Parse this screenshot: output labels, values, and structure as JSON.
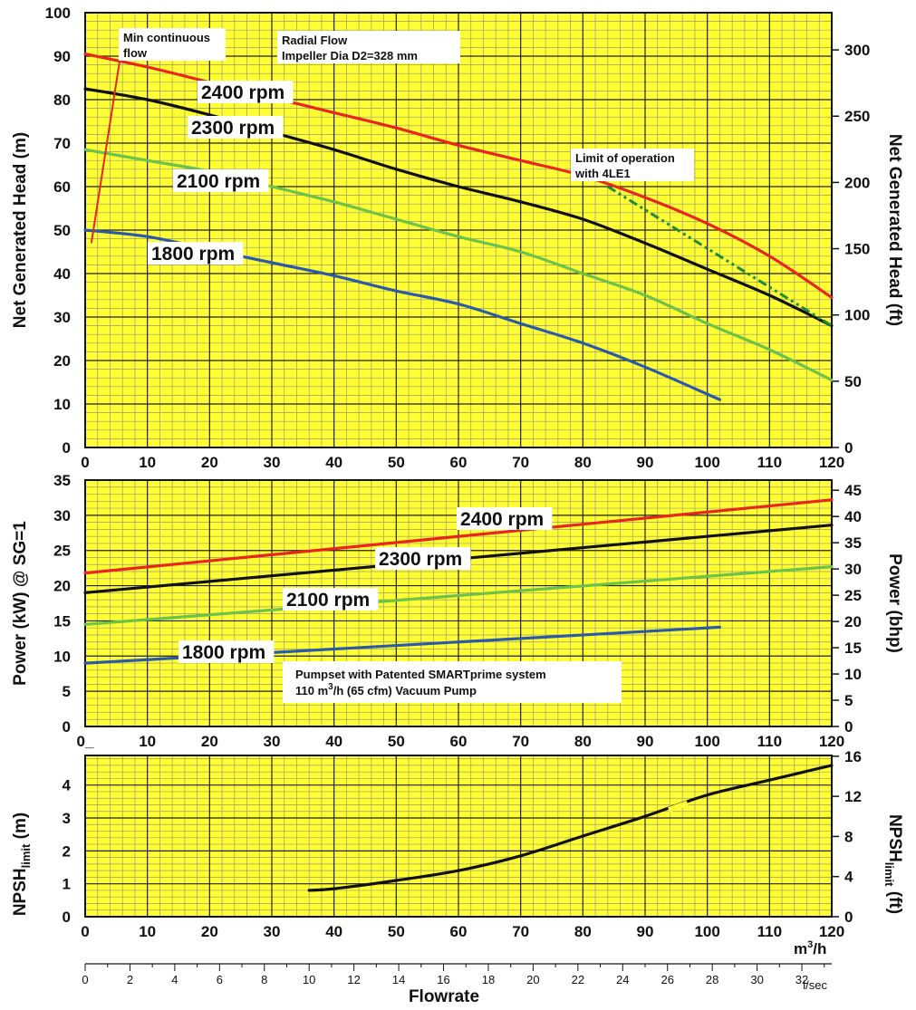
{
  "chart_data": [
    {
      "type": "line",
      "panel": "head",
      "ylabel_left": "Net Generated Head  (m)",
      "ylabel_right": "Net Generated Head  (ft)",
      "xlim": [
        0,
        120
      ],
      "ylim": [
        0,
        100
      ],
      "ylim_right_ft": [
        0,
        328
      ],
      "x_ticks": [
        "0",
        "10",
        "20",
        "30",
        "40",
        "50",
        "60",
        "70",
        "80",
        "90",
        "100",
        "110",
        "120"
      ],
      "y_ticks": [
        "0",
        "10",
        "20",
        "30",
        "40",
        "50",
        "60",
        "70",
        "80",
        "90",
        "100"
      ],
      "y_ticks_right": [
        "0",
        "50",
        "100",
        "150",
        "200",
        "250",
        "300"
      ],
      "grid": true,
      "series": [
        {
          "name": "2400 rpm",
          "color": "#e8261f",
          "x": [
            0,
            10,
            20,
            30,
            40,
            50,
            60,
            70,
            80,
            90,
            100,
            110,
            120
          ],
          "y": [
            90.5,
            87.5,
            84,
            80.5,
            77,
            73.5,
            69.5,
            66,
            62.5,
            57.5,
            51.5,
            44,
            34.5
          ]
        },
        {
          "name": "2300 rpm",
          "color": "#111111",
          "x": [
            0,
            10,
            20,
            30,
            40,
            50,
            60,
            70,
            80,
            90,
            100,
            110,
            120
          ],
          "y": [
            82.5,
            80,
            76.5,
            72.5,
            68.5,
            64,
            60,
            56.5,
            52.5,
            47,
            41,
            35,
            28
          ]
        },
        {
          "name": "2100 rpm",
          "color": "#6cc24a",
          "x": [
            0,
            10,
            20,
            30,
            40,
            50,
            60,
            70,
            80,
            90,
            100,
            110,
            120
          ],
          "y": [
            68.5,
            66,
            63.5,
            60,
            56.5,
            52.5,
            48.5,
            45,
            40,
            35,
            28.5,
            22.5,
            15.5
          ]
        },
        {
          "name": "1800 rpm",
          "color": "#2c5aa8",
          "x": [
            0,
            10,
            20,
            30,
            40,
            50,
            60,
            70,
            80,
            90,
            102
          ],
          "y": [
            50,
            48.5,
            45.5,
            42.5,
            39.5,
            36,
            33,
            28.5,
            24,
            18.5,
            11
          ]
        }
      ],
      "annotations": {
        "min_flow_line1": "Min continuous",
        "min_flow_line2": "flow",
        "impeller_line1": "Radial Flow",
        "impeller_line2": "Impeller Dia D2=328 mm",
        "limit_line1": "Limit of operation",
        "limit_line2": "with 4LE1"
      },
      "min_flow_line": {
        "x": [
          1,
          5.5
        ],
        "y": [
          47,
          88.5
        ],
        "color": "#e8261f"
      },
      "limit_line": {
        "x": [
          84,
          120
        ],
        "y": [
          60,
          28
        ],
        "color": "#1f8a3a"
      }
    },
    {
      "type": "line",
      "panel": "power",
      "ylabel_left": "Power (kW) @ SG=1",
      "ylabel_right": "Power (bhp)",
      "xlim": [
        0,
        120
      ],
      "ylim": [
        0,
        35
      ],
      "x_ticks": [
        "0_",
        "10",
        "20",
        "30",
        "40",
        "50",
        "60",
        "70",
        "80",
        "90",
        "100",
        "110",
        "120"
      ],
      "y_ticks": [
        "0",
        "5",
        "10",
        "15",
        "20",
        "25",
        "30",
        "35"
      ],
      "y_ticks_right": [
        "0",
        "5",
        "10",
        "15",
        "20",
        "25",
        "30",
        "35",
        "40",
        "45"
      ],
      "grid": true,
      "series": [
        {
          "name": "2400 rpm",
          "color": "#e8261f",
          "x": [
            0,
            120
          ],
          "y": [
            21.8,
            32.2
          ]
        },
        {
          "name": "2300 rpm",
          "color": "#111111",
          "x": [
            0,
            120
          ],
          "y": [
            19,
            28.6
          ]
        },
        {
          "name": "2100 rpm",
          "color": "#6cc24a",
          "x": [
            0,
            120
          ],
          "y": [
            14.5,
            22.7
          ]
        },
        {
          "name": "1800 rpm",
          "color": "#2c5aa8",
          "x": [
            0,
            102
          ],
          "y": [
            9,
            14.1
          ]
        }
      ],
      "annotations": {
        "pumpset_line1": "Pumpset with Patented SMARTprime system",
        "pumpset_line2_a": "110 m",
        "pumpset_line2_sup": "3",
        "pumpset_line2_b": "/h (65 cfm) Vacuum Pump"
      }
    },
    {
      "type": "line",
      "panel": "npsh",
      "ylabel_left_main": "NPSH",
      "ylabel_left_sub": "limit",
      "ylabel_left_unit": " (m)",
      "ylabel_right_main": "NPSH",
      "ylabel_right_sub": "limit",
      "ylabel_right_unit": " (ft)",
      "xlim": [
        0,
        120
      ],
      "ylim": [
        0,
        4.9
      ],
      "x_ticks": [
        "0",
        "10",
        "20",
        "30",
        "40",
        "50",
        "60",
        "70",
        "80",
        "90",
        "100",
        "110",
        "120"
      ],
      "y_ticks": [
        "0",
        "1",
        "2",
        "3",
        "4"
      ],
      "y_ticks_right": [
        "0",
        "4",
        "8",
        "12",
        "16"
      ],
      "grid": true,
      "series": [
        {
          "name": "NPSH",
          "color": "#111111",
          "x": [
            36,
            40,
            50,
            60,
            70,
            80,
            90,
            100,
            110,
            120
          ],
          "y": [
            0.8,
            0.85,
            1.1,
            1.4,
            1.85,
            2.45,
            3.05,
            3.7,
            4.15,
            4.6
          ]
        }
      ],
      "x_unit_main": "m",
      "x_unit_sup": "3",
      "x_unit_tail": "/h",
      "lsec_ticks": [
        "0",
        "2",
        "4",
        "6",
        "8",
        "10",
        "12",
        "14",
        "16",
        "18",
        "20",
        "22",
        "24",
        "26",
        "28",
        "30",
        "32"
      ],
      "lsec_unit": "l/sec",
      "xlabel": "Flowrate"
    }
  ]
}
